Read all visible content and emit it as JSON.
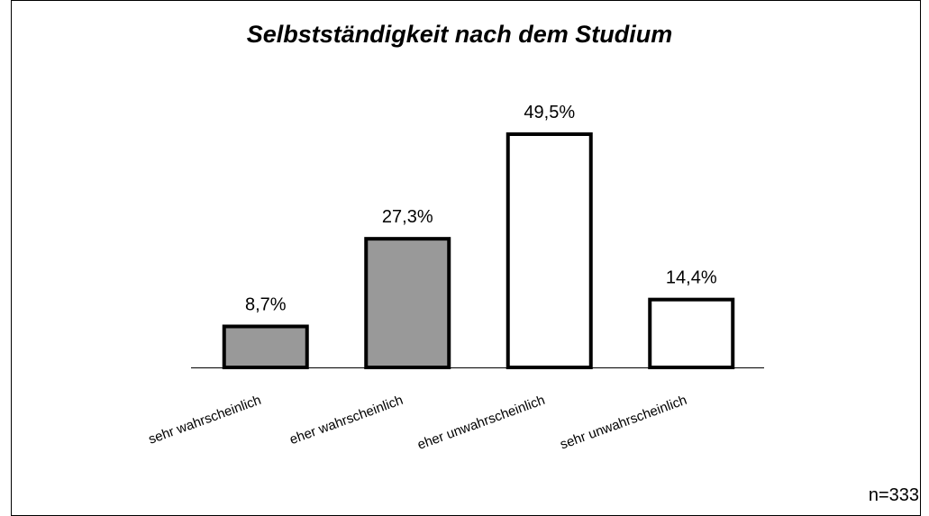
{
  "chart_data": {
    "type": "bar",
    "title": "Selbstständigkeit nach dem Studium",
    "categories": [
      "sehr wahrscheinlich",
      "eher wahrscheinlich",
      "eher unwahrscheinlich",
      "sehr unwahrscheinlich"
    ],
    "values": [
      8.7,
      27.3,
      49.5,
      14.4
    ],
    "value_labels": [
      "8,7%",
      "27,3%",
      "49,5%",
      "14,4%"
    ],
    "colors": [
      "#999999",
      "#999999",
      "#ffffff",
      "#ffffff"
    ],
    "annotation": "n=333"
  }
}
